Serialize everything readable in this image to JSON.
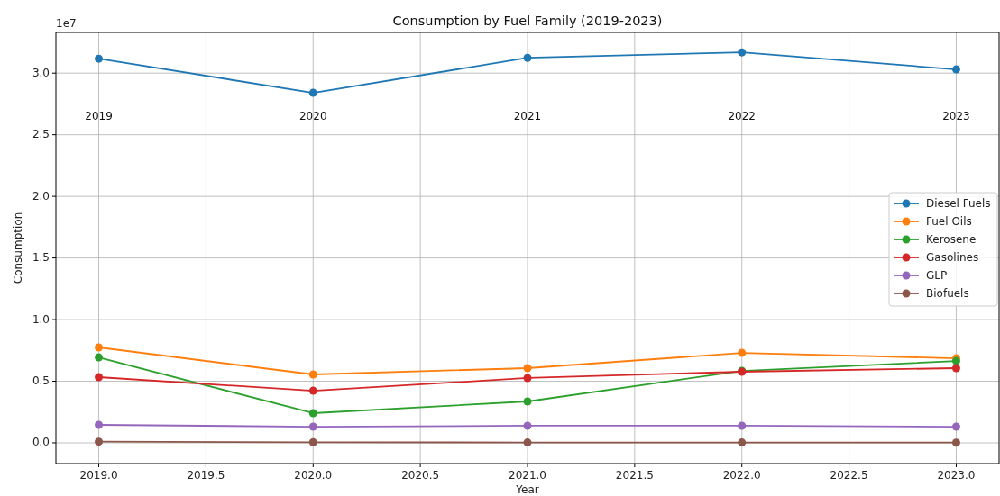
{
  "chart_data": {
    "type": "line",
    "title": "Consumption by Fuel Family (2019-2023)",
    "xlabel": "Year",
    "ylabel": "Consumption",
    "x": [
      2019,
      2020,
      2021,
      2022,
      2023
    ],
    "series": [
      {
        "name": "Diesel Fuels",
        "color": "#1f77b4",
        "values": [
          3.117,
          2.84,
          3.124,
          3.168,
          3.03
        ]
      },
      {
        "name": "Fuel Oils",
        "color": "#ff7f0e",
        "values": [
          0.774,
          0.555,
          0.606,
          0.73,
          0.686
        ]
      },
      {
        "name": "Kerosene",
        "color": "#2ca02c",
        "values": [
          0.693,
          0.241,
          0.336,
          0.584,
          0.664
        ]
      },
      {
        "name": "Gasolines",
        "color": "#d62728",
        "values": [
          0.533,
          0.423,
          0.526,
          0.577,
          0.606
        ]
      },
      {
        "name": "GLP",
        "color": "#9467bd",
        "values": [
          0.146,
          0.131,
          0.139,
          0.139,
          0.131
        ]
      },
      {
        "name": "Biofuels",
        "color": "#8c564b",
        "values": [
          0.01,
          0.005,
          0.003,
          0.003,
          0.002
        ]
      }
    ],
    "xlim": [
      2018.8,
      2023.2
    ],
    "xticks": [
      {
        "value": 2019,
        "label": "2019.0"
      },
      {
        "value": 2019.5,
        "label": "2019.5"
      },
      {
        "value": 2020,
        "label": "2020.0"
      },
      {
        "value": 2020.5,
        "label": "2020.5"
      },
      {
        "value": 2021,
        "label": "2021.0"
      },
      {
        "value": 2021.5,
        "label": "2021.5"
      },
      {
        "value": 2022,
        "label": "2022.0"
      },
      {
        "value": 2022.5,
        "label": "2022.5"
      },
      {
        "value": 2023,
        "label": "2023.0"
      }
    ],
    "ylim": [
      -0.168,
      3.33
    ],
    "yticks": [
      {
        "value": 0,
        "label": "0.0"
      },
      {
        "value": 0.5,
        "label": "0.5"
      },
      {
        "value": 1,
        "label": "1.0"
      },
      {
        "value": 1.5,
        "label": "1.5"
      },
      {
        "value": 2,
        "label": "2.0"
      },
      {
        "value": 2.5,
        "label": "2.5"
      },
      {
        "value": 3,
        "label": "3.0"
      }
    ],
    "annotations": [
      "1e7",
      "2019",
      "2020",
      "2021",
      "2022",
      "2023"
    ],
    "grid": true,
    "legend": "right",
    "marker": "circle",
    "line_style": "solid"
  }
}
